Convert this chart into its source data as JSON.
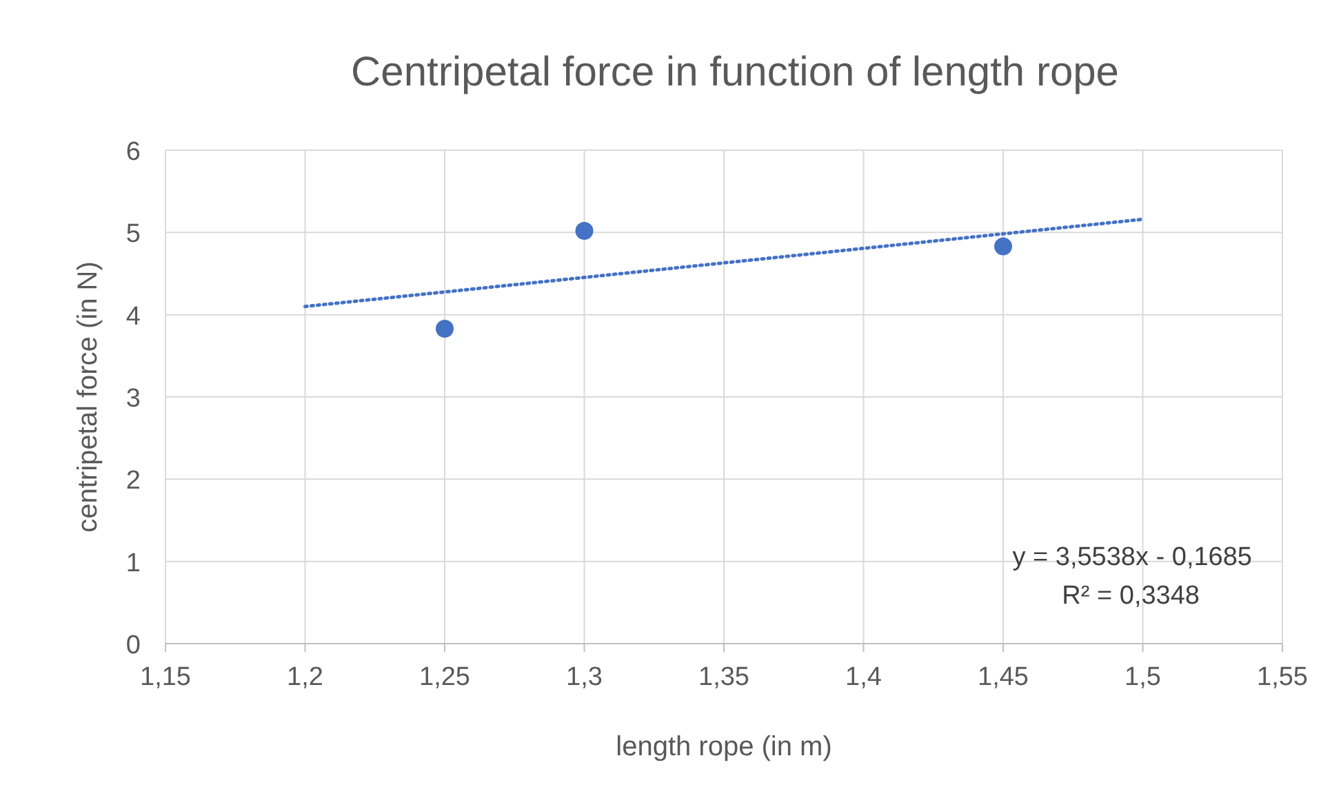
{
  "chart_data": {
    "type": "scatter",
    "title": "Centripetal force in function of length rope",
    "xlabel": "length rope (in m)",
    "ylabel": "centripetal force (in N)",
    "x": [
      1.25,
      1.3,
      1.45
    ],
    "series": [
      {
        "color": "#4472c4",
        "marker": "circle",
        "values": [
          3.83,
          5.02,
          4.83
        ]
      },
      {
        "type": "line",
        "color": "#4472c4",
        "marker": "none",
        "line_style": "dotted",
        "x": [
          1.2,
          1.5
        ],
        "values": [
          4.1,
          5.16
        ]
      }
    ],
    "xlim": [
      1.15,
      1.55
    ],
    "xticks": [
      {
        "value": 1.15,
        "label": "1,15"
      },
      {
        "value": 1.2,
        "label": "1,2"
      },
      {
        "value": 1.25,
        "label": "1,25"
      },
      {
        "value": 1.3,
        "label": "1,3"
      },
      {
        "value": 1.35,
        "label": "1,35"
      },
      {
        "value": 1.4,
        "label": "1,4"
      },
      {
        "value": 1.45,
        "label": "1,45"
      },
      {
        "value": 1.5,
        "label": "1,5"
      },
      {
        "value": 1.55,
        "label": "1,55"
      }
    ],
    "ylim": [
      0,
      6
    ],
    "yticks": [
      0,
      1,
      2,
      3,
      4,
      5,
      6
    ],
    "grid": true,
    "annotations": [
      "y = 3,5538x - 0,1685",
      "R² = 0,3348"
    ]
  }
}
